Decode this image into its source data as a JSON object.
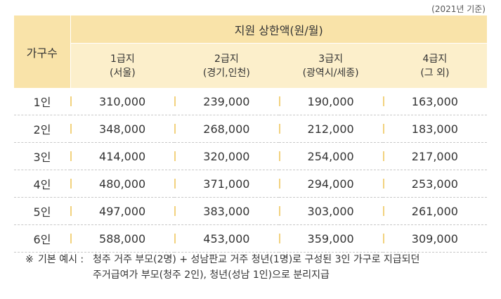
{
  "basis": "(2021년 기준)",
  "table": {
    "corner_header": "가구수",
    "main_header": "지원 상한액(원/월)",
    "grades": [
      {
        "name": "1급지",
        "area": "(서울)"
      },
      {
        "name": "2급지",
        "area": "(경기,인천)"
      },
      {
        "name": "3급지",
        "area": "(광역시/세종)"
      },
      {
        "name": "4급지",
        "area": "(그 외)"
      }
    ],
    "rows": [
      {
        "household": "1인",
        "values": [
          "310,000",
          "239,000",
          "190,000",
          "163,000"
        ]
      },
      {
        "household": "2인",
        "values": [
          "348,000",
          "268,000",
          "212,000",
          "183,000"
        ]
      },
      {
        "household": "3인",
        "values": [
          "414,000",
          "320,000",
          "254,000",
          "217,000"
        ]
      },
      {
        "household": "4인",
        "values": [
          "480,000",
          "371,000",
          "294,000",
          "253,000"
        ]
      },
      {
        "household": "5인",
        "values": [
          "497,000",
          "383,000",
          "303,000",
          "261,000"
        ]
      },
      {
        "household": "6인",
        "values": [
          "588,000",
          "453,000",
          "359,000",
          "309,000"
        ]
      }
    ]
  },
  "note": {
    "mark": "※",
    "label": "기본 예시 :",
    "line1": "청주 거주 부모(2명) + 성남판교 거주 청년(1명)로 구성된 3인 가구로 지급되던",
    "line2": "주거급여가 부모(청주 2인), 청년(성남 1인)으로 분리지급"
  },
  "colors": {
    "header_main_bg": "#f9e3a9",
    "header_sub_bg": "#fcefcb",
    "separator": "#f2d27e"
  }
}
